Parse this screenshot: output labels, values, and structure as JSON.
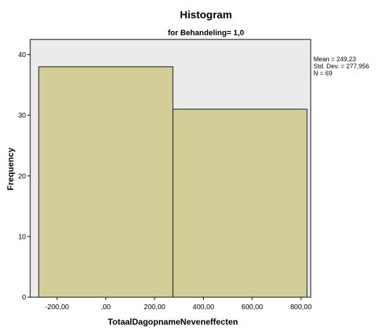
{
  "chart_data": {
    "type": "bar",
    "title": "Histogram",
    "subtitle": "for Behandeling= 1,0",
    "xlabel": "TotaalDagopnameNeveneffecten",
    "ylabel": "Frequency",
    "xlim": [
      -310,
      840
    ],
    "ylim": [
      0,
      42.5
    ],
    "x_ticks": [
      -200,
      0,
      200,
      400,
      600,
      800
    ],
    "x_tick_labels": [
      "-200,00",
      ",00",
      "200,00",
      "400,00",
      "600,00",
      "800,00"
    ],
    "y_ticks": [
      0,
      10,
      20,
      30,
      40
    ],
    "y_tick_labels": [
      "0",
      "10",
      "20",
      "30",
      "40"
    ],
    "bins": [
      {
        "x0": -275,
        "x1": 275,
        "value": 38
      },
      {
        "x0": 275,
        "x1": 825,
        "value": 31
      }
    ],
    "stats": {
      "mean": "Mean = 249,23",
      "std_dev": "Std. Dev. = 277,956",
      "n": "N = 69"
    },
    "grid": false,
    "legend": "none"
  },
  "colors": {
    "plot_background": "#ebebeb",
    "bar_fill": "#d3ce97",
    "bar_stroke": "#3c3c3c",
    "axis": "#000000"
  }
}
